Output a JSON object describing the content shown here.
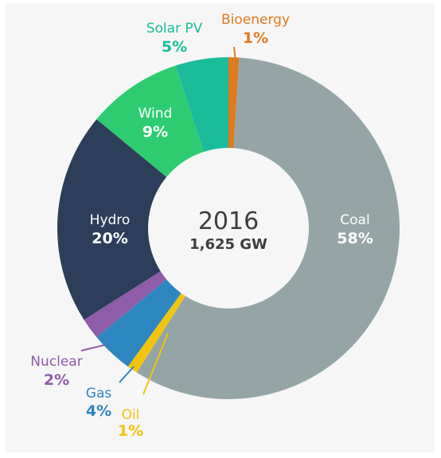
{
  "chart_data": {
    "type": "pie",
    "variant": "donut",
    "center_title": "2016",
    "center_subtitle": "1,625 GW",
    "slices": [
      {
        "label": "Bioenergy",
        "percent_label": "1%",
        "value": 1,
        "color": "#e07a1f",
        "label_color": "#e07a1f",
        "value_color": "#e07a1f"
      },
      {
        "label": "Coal",
        "percent_label": "58%",
        "value": 58,
        "color": "#95a5a6",
        "label_color": "#ffffff",
        "value_color": "#ffffff"
      },
      {
        "label": "Oil",
        "percent_label": "1%",
        "value": 1,
        "color": "#f1c40f",
        "label_color": "#f1c40f",
        "value_color": "#f1c40f"
      },
      {
        "label": "Gas",
        "percent_label": "4%",
        "value": 4,
        "color": "#2e86c1",
        "label_color": "#2e86c1",
        "value_color": "#2e86c1"
      },
      {
        "label": "Nuclear",
        "percent_label": "2%",
        "value": 2,
        "color": "#8e5ca8",
        "label_color": "#8e5ca8",
        "value_color": "#8e5ca8"
      },
      {
        "label": "Hydro",
        "percent_label": "20%",
        "value": 20,
        "color": "#2c3e5a",
        "label_color": "#ffffff",
        "value_color": "#ffffff"
      },
      {
        "label": "Wind",
        "percent_label": "9%",
        "value": 9,
        "color": "#2ecc71",
        "label_color": "#ffffff",
        "value_color": "#ffffff"
      },
      {
        "label": "Solar PV",
        "percent_label": "5%",
        "value": 5,
        "color": "#1abc9c",
        "label_color": "#1abc9c",
        "value_color": "#1abc9c"
      }
    ],
    "legend": "none",
    "labels": "inside large slices, outside small slices with leader lines"
  }
}
